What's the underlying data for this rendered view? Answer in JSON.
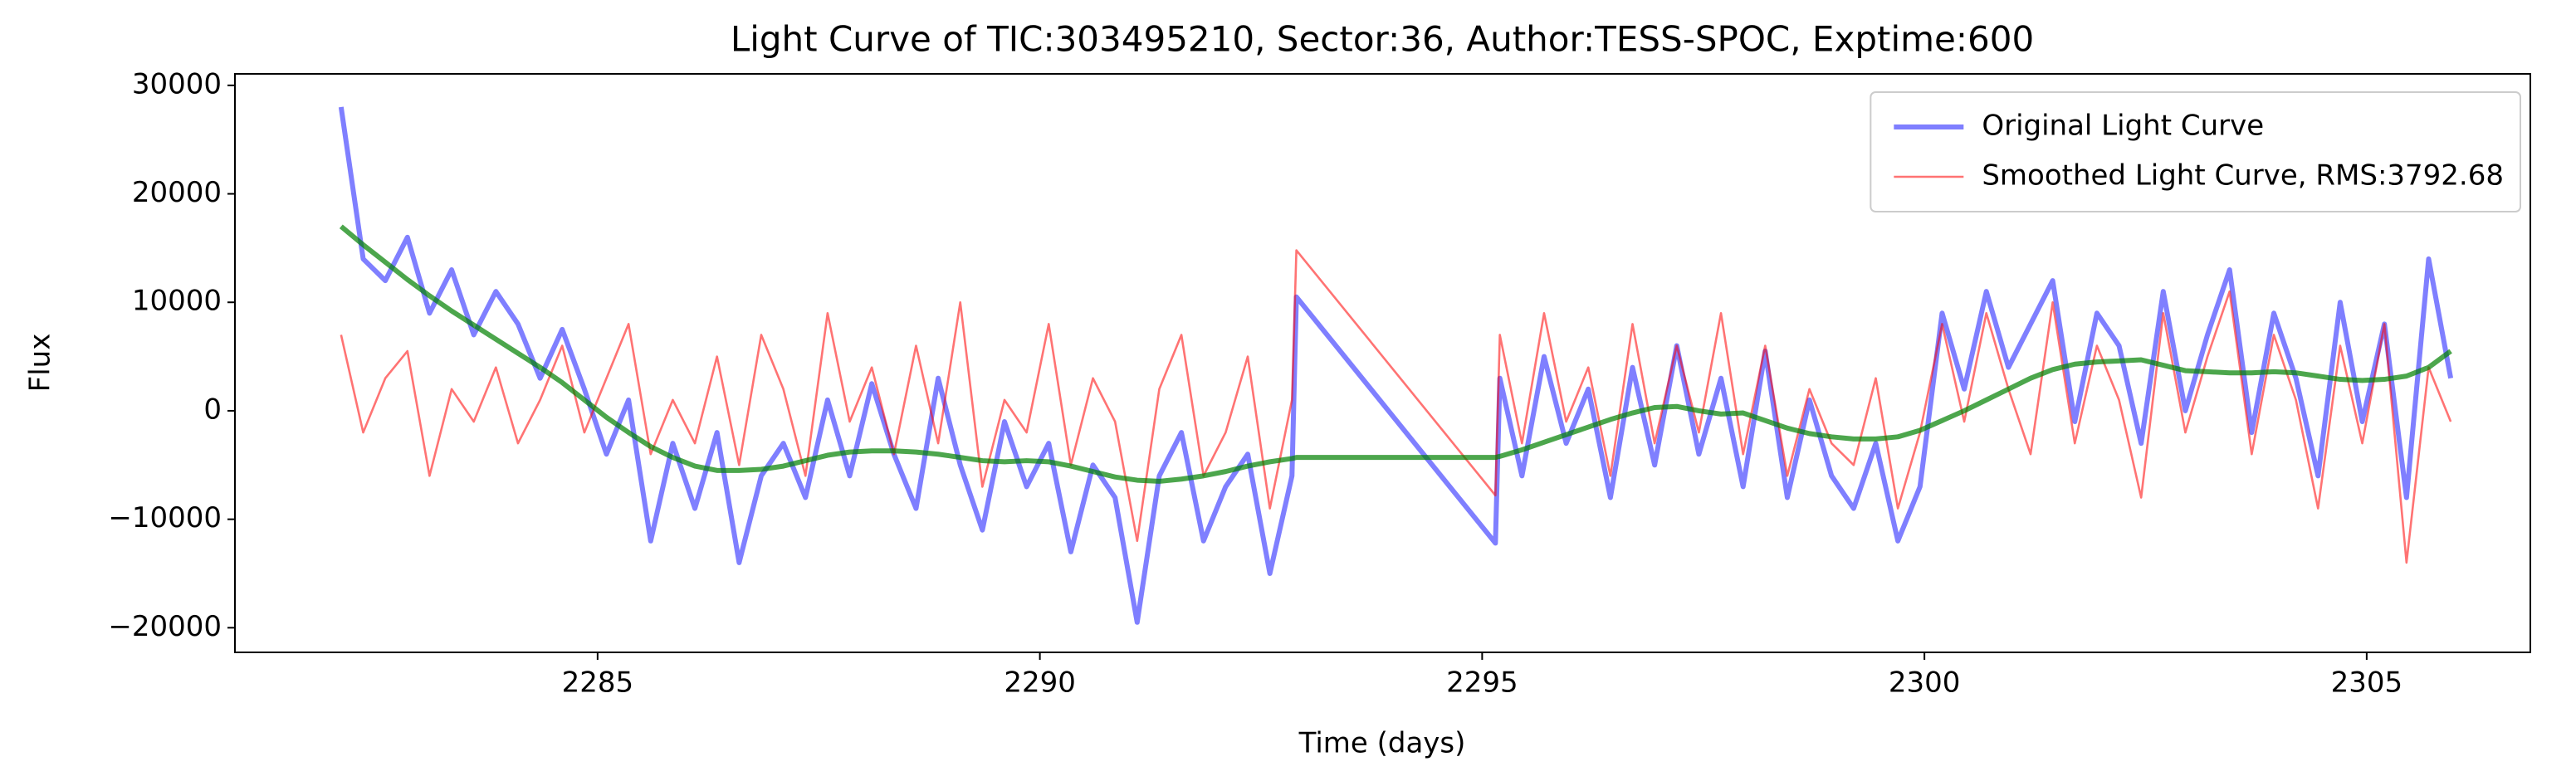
{
  "chart_data": {
    "type": "line",
    "title": "Light Curve of TIC:303495210, Sector:36, Author:TESS-SPOC, Exptime:600",
    "xlabel": "Time (days)",
    "ylabel": "Flux",
    "x": [
      2282.1,
      2282.35,
      2282.6,
      2282.85,
      2283.1,
      2283.35,
      2283.6,
      2283.85,
      2284.1,
      2284.35,
      2284.6,
      2284.85,
      2285.1,
      2285.35,
      2285.6,
      2285.85,
      2286.1,
      2286.35,
      2286.6,
      2286.85,
      2287.1,
      2287.35,
      2287.6,
      2287.85,
      2288.1,
      2288.35,
      2288.6,
      2288.85,
      2289.1,
      2289.35,
      2289.6,
      2289.85,
      2290.1,
      2290.35,
      2290.6,
      2290.85,
      2291.1,
      2291.35,
      2291.6,
      2291.85,
      2292.1,
      2292.35,
      2292.6,
      2292.85,
      2292.9,
      2295.15,
      2295.2,
      2295.45,
      2295.7,
      2295.95,
      2296.2,
      2296.45,
      2296.7,
      2296.95,
      2297.2,
      2297.45,
      2297.7,
      2297.95,
      2298.2,
      2298.45,
      2298.7,
      2298.95,
      2299.2,
      2299.45,
      2299.7,
      2299.95,
      2300.2,
      2300.45,
      2300.7,
      2300.95,
      2301.2,
      2301.45,
      2301.7,
      2301.95,
      2302.2,
      2302.45,
      2302.7,
      2302.95,
      2303.2,
      2303.45,
      2303.7,
      2303.95,
      2304.2,
      2304.45,
      2304.7,
      2304.95,
      2305.2,
      2305.45,
      2305.7,
      2305.95
    ],
    "series": [
      {
        "name": "Original Light Curve",
        "color": "#0000ff",
        "values": [
          28000,
          14000,
          12000,
          16000,
          9000,
          13000,
          7000,
          11000,
          8000,
          3000,
          7500,
          2000,
          -4000,
          1000,
          -12000,
          -3000,
          -9000,
          -2000,
          -14000,
          -6000,
          -3000,
          -8000,
          1000,
          -6000,
          2500,
          -4000,
          -9000,
          3000,
          -5000,
          -11000,
          -1000,
          -7000,
          -3000,
          -13000,
          -5000,
          -8000,
          -19500,
          -6000,
          -2000,
          -12000,
          -7000,
          -4000,
          -15000,
          -6000,
          10500,
          -12200,
          3000,
          -6000,
          5000,
          -3000,
          2000,
          -8000,
          4000,
          -5000,
          6000,
          -4000,
          3000,
          -7000,
          5500,
          -8000,
          1000,
          -6000,
          -9000,
          -3000,
          -12000,
          -7000,
          9000,
          2000,
          11000,
          4000,
          8000,
          12000,
          -1000,
          9000,
          6000,
          -3000,
          11000,
          0,
          7000,
          13000,
          -2000,
          9000,
          3000,
          -6000,
          10000,
          -1000,
          8000,
          -8000,
          14000,
          3000
        ]
      },
      {
        "name": "Smoothed Light Curve, RMS:3792.68",
        "color": "#ff0000",
        "values": [
          7000,
          -2000,
          3000,
          5500,
          -6000,
          2000,
          -1000,
          4000,
          -3000,
          1000,
          6000,
          -2000,
          3000,
          8000,
          -4000,
          1000,
          -3000,
          5000,
          -5000,
          7000,
          2000,
          -6000,
          9000,
          -1000,
          4000,
          -4000,
          6000,
          -3000,
          10000,
          -7000,
          1000,
          -2000,
          8000,
          -5000,
          3000,
          -1000,
          -12000,
          2000,
          7000,
          -6000,
          -2000,
          5000,
          -9000,
          1000,
          14800,
          -7800,
          7000,
          -3000,
          9000,
          -1000,
          4000,
          -6000,
          8000,
          -3000,
          6000,
          -2000,
          9000,
          -4000,
          6000,
          -6000,
          2000,
          -3000,
          -5000,
          3000,
          -9000,
          -2000,
          8000,
          -1000,
          9000,
          2000,
          -4000,
          10000,
          -3000,
          6000,
          1000,
          -8000,
          9000,
          -2000,
          5000,
          11000,
          -4000,
          7000,
          1000,
          -9000,
          6000,
          -3000,
          8000,
          -14000,
          4000,
          -1000
        ]
      },
      {
        "color": "#008000",
        "values": [
          17000,
          15300,
          13700,
          12100,
          10600,
          9200,
          7900,
          6600,
          5300,
          4000,
          2600,
          1000,
          -600,
          -2000,
          -3300,
          -4300,
          -5100,
          -5500,
          -5500,
          -5400,
          -5100,
          -4600,
          -4100,
          -3800,
          -3700,
          -3700,
          -3800,
          -4000,
          -4300,
          -4600,
          -4700,
          -4600,
          -4700,
          -5100,
          -5600,
          -6100,
          -6400,
          -6500,
          -6300,
          -6000,
          -5600,
          -5100,
          -4700,
          -4400,
          -4300,
          -4300,
          -4200,
          -3600,
          -2900,
          -2200,
          -1500,
          -800,
          -200,
          300,
          400,
          0,
          -300,
          -200,
          -900,
          -1600,
          -2100,
          -2400,
          -2600,
          -2600,
          -2400,
          -1800,
          -900,
          0,
          1000,
          2000,
          3000,
          3800,
          4300,
          4500,
          4600,
          4700,
          4200,
          3700,
          3600,
          3500,
          3500,
          3600,
          3500,
          3200,
          2900,
          2800,
          2900,
          3200,
          4000,
          5500
        ]
      }
    ],
    "xlim": [
      2280.9,
      2306.85
    ],
    "ylim": [
      -22270,
      31060
    ],
    "xticks": [
      2285,
      2290,
      2295,
      2300,
      2305
    ],
    "yticks": [
      {
        "value": -20000,
        "label": "−20000"
      },
      {
        "value": -10000,
        "label": "−10000"
      },
      0,
      10000,
      20000,
      30000
    ],
    "legend": "upper right",
    "grid": false
  }
}
